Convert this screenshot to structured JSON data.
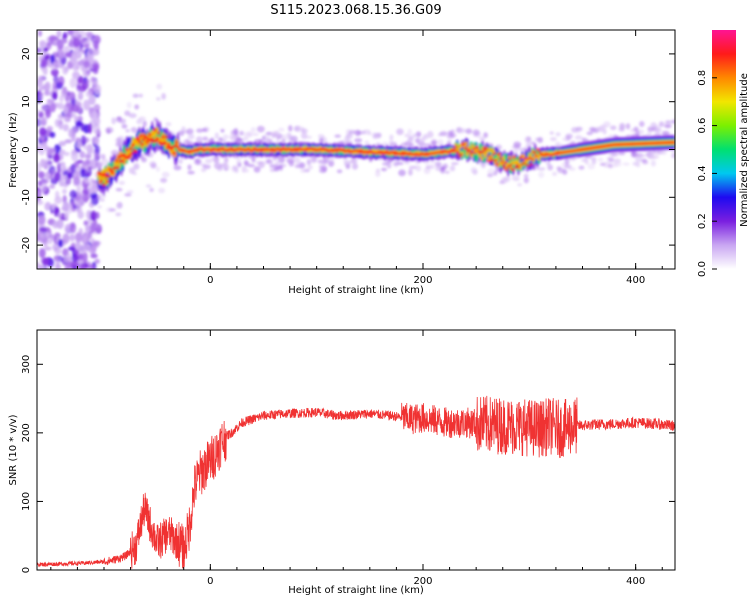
{
  "title": "S115.2023.068.15.36.G09",
  "chart_data": [
    {
      "type": "heatmap",
      "title": "S115.2023.068.15.36.G09",
      "xlabel": "Height of straight line (km)",
      "ylabel": "Frequency (Hz)",
      "xlim": [
        -163,
        437
      ],
      "ylim": [
        -25,
        25
      ],
      "xticks": [
        0,
        200,
        400
      ],
      "yticks": [
        -20,
        -10,
        0,
        10,
        20
      ],
      "colorbar": {
        "label": "Normalized spectral amplitude",
        "range": [
          0,
          1
        ],
        "ticks": [
          "0.0",
          "0.2",
          "0.4",
          "0.6",
          "0.8"
        ],
        "colors": [
          "#ffffff",
          "#c9a6f2",
          "#7a1fe0",
          "#1e0af0",
          "#00c8f0",
          "#00e070",
          "#7cf000",
          "#f2e600",
          "#ff8800",
          "#ff1a1a",
          "#ff1493"
        ]
      },
      "ridge": {
        "x": [
          -100,
          -90,
          -80,
          -70,
          -60,
          -50,
          -40,
          -30,
          -20,
          -10,
          0,
          50,
          100,
          150,
          200,
          220,
          240,
          260,
          270,
          280,
          290,
          300,
          310,
          320,
          350,
          380,
          437
        ],
        "y": [
          -6,
          -4,
          -1,
          1,
          2,
          3,
          1,
          0,
          -0.5,
          0,
          0,
          0,
          0,
          -0.5,
          -1,
          -0.5,
          0,
          -1,
          -2,
          -3,
          -3,
          -2,
          -1,
          -1,
          0,
          1,
          1.5
        ]
      },
      "grid": false
    },
    {
      "type": "line",
      "xlabel": "Height of straight line (km)",
      "ylabel": "SNR (10 * v/v)",
      "xlim": [
        -163,
        437
      ],
      "ylim": [
        0,
        350
      ],
      "xticks": [
        0,
        200,
        400
      ],
      "yticks": [
        0,
        100,
        200,
        300
      ],
      "color": "#f03232",
      "series": [
        {
          "x": [
            -163,
            -140,
            -120,
            -100,
            -90,
            -80,
            -70,
            -62,
            -55,
            -50,
            -45,
            -40,
            -30,
            -25,
            -20,
            -15,
            -10,
            -5,
            0,
            5,
            10,
            15,
            20,
            30,
            40,
            50,
            70,
            100,
            120,
            150,
            170,
            190,
            200,
            220,
            240,
            260,
            280,
            300,
            310,
            320,
            330,
            340,
            345,
            360,
            380,
            400,
            420,
            437
          ],
          "y": [
            8,
            9,
            10,
            12,
            15,
            20,
            35,
            90,
            60,
            40,
            45,
            55,
            40,
            30,
            60,
            120,
            140,
            150,
            160,
            170,
            185,
            195,
            200,
            215,
            220,
            225,
            228,
            230,
            225,
            228,
            225,
            220,
            222,
            215,
            215,
            212,
            210,
            208,
            206,
            210,
            205,
            210,
            210,
            212,
            213,
            215,
            213,
            210
          ]
        }
      ],
      "grid": false
    }
  ]
}
